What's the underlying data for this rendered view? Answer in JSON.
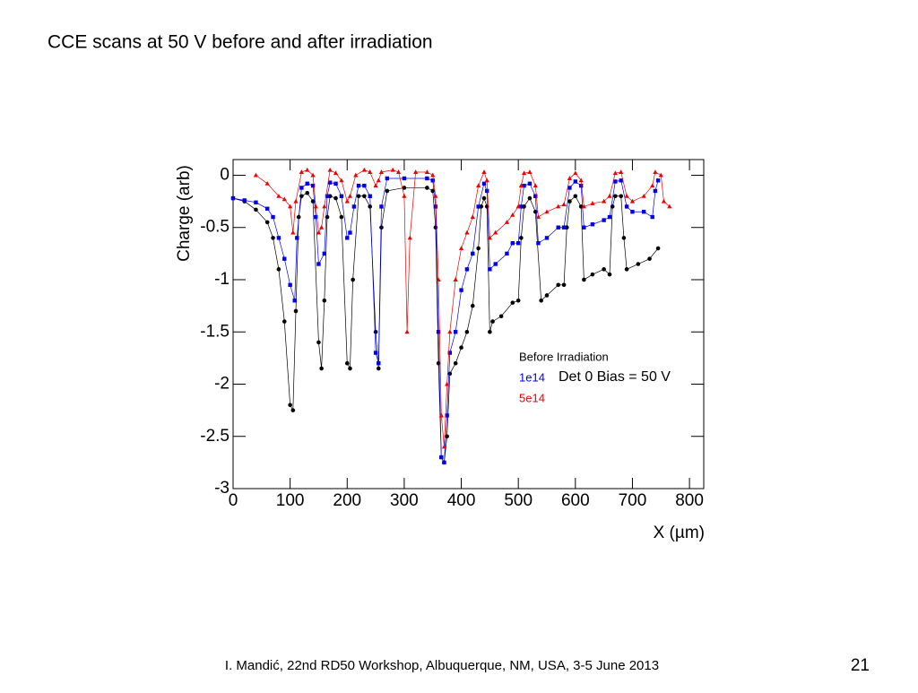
{
  "title": "CCE scans at 50 V before and after irradiation",
  "footer": "I. Mandić, 22nd RD50 Workshop, Albuquerque, NM, USA, 3-5 June 2013",
  "page_number": "21",
  "chart_data": {
    "type": "scatter",
    "x_label": "X (µm)",
    "y_label": "Charge (arb)",
    "annotation": "Det 0 Bias = 50 V",
    "xlim": [
      0,
      825
    ],
    "ylim": [
      -3,
      0.15
    ],
    "xticks": [
      0,
      100,
      200,
      300,
      400,
      500,
      600,
      700,
      800
    ],
    "yticks": [
      0,
      -0.5,
      -1,
      -1.5,
      -2,
      -2.5,
      -3
    ],
    "series": [
      {
        "name": "Before Irradiation",
        "color": "#000000",
        "marker": "circle",
        "x": [
          0,
          20,
          40,
          60,
          70,
          80,
          90,
          100,
          105,
          110,
          115,
          120,
          130,
          140,
          150,
          155,
          160,
          165,
          170,
          180,
          190,
          200,
          205,
          210,
          220,
          230,
          240,
          250,
          255,
          260,
          270,
          300,
          340,
          350,
          355,
          360,
          365,
          370,
          375,
          380,
          390,
          400,
          410,
          420,
          430,
          435,
          440,
          445,
          450,
          455,
          470,
          490,
          500,
          505,
          510,
          520,
          530,
          540,
          550,
          570,
          580,
          585,
          590,
          600,
          610,
          615,
          630,
          650,
          660,
          665,
          670,
          680,
          685,
          690,
          710,
          730,
          745
        ],
        "values": [
          -0.22,
          -0.25,
          -0.33,
          -0.45,
          -0.6,
          -0.9,
          -1.4,
          -2.2,
          -2.25,
          -1.3,
          -0.4,
          -0.2,
          -0.17,
          -0.25,
          -1.6,
          -1.85,
          -1.2,
          -0.4,
          -0.2,
          -0.22,
          -0.4,
          -1.8,
          -1.85,
          -1.0,
          -0.2,
          -0.2,
          -0.3,
          -1.5,
          -1.85,
          -0.5,
          -0.15,
          -0.12,
          -0.12,
          -0.15,
          -0.5,
          -1.8,
          -2.7,
          -2.75,
          -2.5,
          -1.9,
          -1.8,
          -1.65,
          -1.5,
          -1.25,
          -0.7,
          -0.3,
          -0.22,
          -0.3,
          -1.5,
          -1.4,
          -1.35,
          -1.22,
          -1.2,
          -0.6,
          -0.3,
          -0.22,
          -0.35,
          -1.2,
          -1.15,
          -1.05,
          -1.05,
          -0.5,
          -0.25,
          -0.2,
          -0.3,
          -1.0,
          -0.95,
          -0.9,
          -0.95,
          -0.3,
          -0.2,
          -0.2,
          -0.6,
          -0.9,
          -0.85,
          -0.8,
          -0.7
        ]
      },
      {
        "name": "1e14",
        "color": "#0000ee",
        "marker": "square",
        "x": [
          0,
          20,
          40,
          60,
          70,
          80,
          90,
          100,
          108,
          112,
          120,
          130,
          140,
          145,
          150,
          160,
          165,
          170,
          180,
          190,
          200,
          205,
          212,
          220,
          230,
          240,
          250,
          255,
          260,
          270,
          300,
          340,
          350,
          355,
          360,
          365,
          370,
          375,
          380,
          390,
          400,
          410,
          420,
          430,
          440,
          445,
          450,
          460,
          480,
          490,
          500,
          505,
          510,
          520,
          530,
          535,
          550,
          570,
          580,
          590,
          600,
          610,
          615,
          630,
          650,
          660,
          670,
          680,
          690,
          700,
          720,
          735,
          740,
          745
        ],
        "values": [
          -0.22,
          -0.24,
          -0.26,
          -0.32,
          -0.4,
          -0.6,
          -0.8,
          -1.05,
          -1.2,
          -0.6,
          -0.12,
          -0.08,
          -0.1,
          -0.4,
          -0.85,
          -0.75,
          -0.2,
          -0.07,
          -0.08,
          -0.2,
          -0.6,
          -0.55,
          -0.3,
          -0.1,
          -0.1,
          -0.2,
          -1.7,
          -1.8,
          -0.3,
          -0.03,
          -0.03,
          -0.03,
          -0.05,
          -0.3,
          -1.5,
          -2.7,
          -2.75,
          -2.3,
          -1.7,
          -1.5,
          -1.1,
          -0.9,
          -0.75,
          -0.3,
          -0.08,
          -0.15,
          -0.9,
          -0.85,
          -0.75,
          -0.65,
          -0.65,
          -0.3,
          -0.1,
          -0.08,
          -0.2,
          -0.65,
          -0.6,
          -0.5,
          -0.5,
          -0.12,
          -0.06,
          -0.1,
          -0.5,
          -0.47,
          -0.43,
          -0.4,
          -0.06,
          -0.05,
          -0.3,
          -0.35,
          -0.35,
          -0.4,
          -0.15,
          -0.05
        ]
      },
      {
        "name": "5e14",
        "color": "#ee0000",
        "marker": "triangle",
        "x": [
          40,
          60,
          80,
          90,
          100,
          105,
          110,
          120,
          130,
          140,
          145,
          150,
          155,
          160,
          170,
          180,
          190,
          200,
          205,
          215,
          230,
          240,
          250,
          255,
          260,
          280,
          290,
          300,
          305,
          310,
          320,
          340,
          350,
          355,
          360,
          365,
          370,
          375,
          380,
          390,
          400,
          410,
          420,
          430,
          440,
          445,
          450,
          460,
          480,
          490,
          500,
          505,
          510,
          520,
          530,
          535,
          550,
          570,
          580,
          590,
          600,
          610,
          615,
          630,
          650,
          660,
          670,
          680,
          690,
          700,
          720,
          735,
          740,
          750,
          755,
          765
        ],
        "values": [
          0,
          -0.08,
          -0.2,
          -0.23,
          -0.3,
          -0.55,
          -0.25,
          0.03,
          0.05,
          0,
          -0.3,
          -0.55,
          -0.5,
          -0.3,
          0.05,
          0.02,
          -0.05,
          -0.25,
          -0.2,
          0,
          0.05,
          0.03,
          -0.1,
          -0.05,
          0.03,
          0.05,
          0.03,
          -0.2,
          -1.5,
          -0.6,
          0.03,
          0.03,
          0,
          -0.2,
          -1.0,
          -2.3,
          -2.6,
          -2.0,
          -1.5,
          -1.0,
          -0.7,
          -0.55,
          -0.4,
          -0.1,
          0.03,
          -0.05,
          -0.6,
          -0.55,
          -0.45,
          -0.38,
          -0.3,
          -0.1,
          0.02,
          0.03,
          -0.1,
          -0.4,
          -0.35,
          -0.3,
          -0.28,
          -0.03,
          0.02,
          -0.05,
          -0.3,
          -0.27,
          -0.25,
          -0.2,
          0.02,
          0.03,
          -0.2,
          -0.25,
          -0.2,
          -0.1,
          0.03,
          0,
          -0.25,
          -0.3
        ]
      }
    ]
  }
}
